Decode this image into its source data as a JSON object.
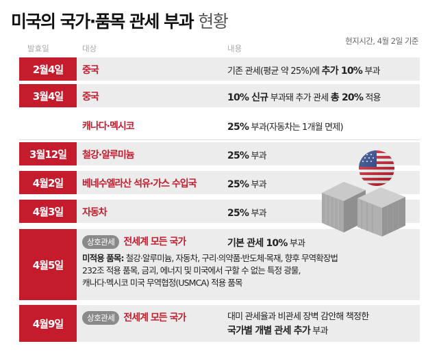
{
  "title": {
    "main": "미국의 국가·품목 관세 부과",
    "suffix": "현황"
  },
  "source_note": "현지시간, 4월 2일 기준",
  "columns": {
    "date": "발효일",
    "target": "대상",
    "content": "내용"
  },
  "rows": [
    {
      "date": "2월4일",
      "target": "중국",
      "content_pre": "기존 관세(평균 약 25%)에 ",
      "content_bold": "추가 10%",
      "content_post": " 부과"
    },
    {
      "date": "3월4일",
      "target": "중국",
      "content_bold": "10% 신규",
      "content_mid": " 부과돼 추가 관세 ",
      "content_bold2": "총 20%",
      "content_post": " 적용"
    },
    {
      "target": "캐나다·멕시코",
      "content_bold": "25%",
      "content_post": " 부과(자동차는 1개월 면제)"
    },
    {
      "date": "3월12일",
      "target": "철강·알루미늄",
      "content_bold": "25%",
      "content_post": " 부과"
    },
    {
      "date": "4월2일",
      "target": "베네수엘라산 석유·가스 수입국",
      "content_bold": "25%",
      "content_post": " 부과"
    },
    {
      "date": "4월3일",
      "target": "자동차",
      "content_bold": "25%",
      "content_post": " 부과"
    },
    {
      "date": "4월5일",
      "badge": "상호관세",
      "target": "전세계 모든 국가",
      "content_bold": "기본 관세 10%",
      "content_post": " 부과",
      "detail_label": "미적용 품목:",
      "detail_lines": [
        "철강·알루미늄, 자동차, 구리·의약품·반도체·목재, 향후 무역확장법",
        "232조 적용 품목, 금괴, 에너지 및 미국에서 구할 수 없는 특정 광물,",
        "캐나다·멕시코 미국 무역협정(USMCA) 적용 품목"
      ]
    },
    {
      "date": "4월9일",
      "badge": "상호관세",
      "target": "전세계 모든 국가",
      "content_line1": "대미 관세율과 비관세 장벽 감안해 책정한",
      "content_bold": "국가별 개별 관세 추가",
      "content_post": " 부과"
    }
  ],
  "colors": {
    "accent": "#c41c2d",
    "row_bg": "#ececec",
    "badge_bg": "#8a8a8a"
  }
}
